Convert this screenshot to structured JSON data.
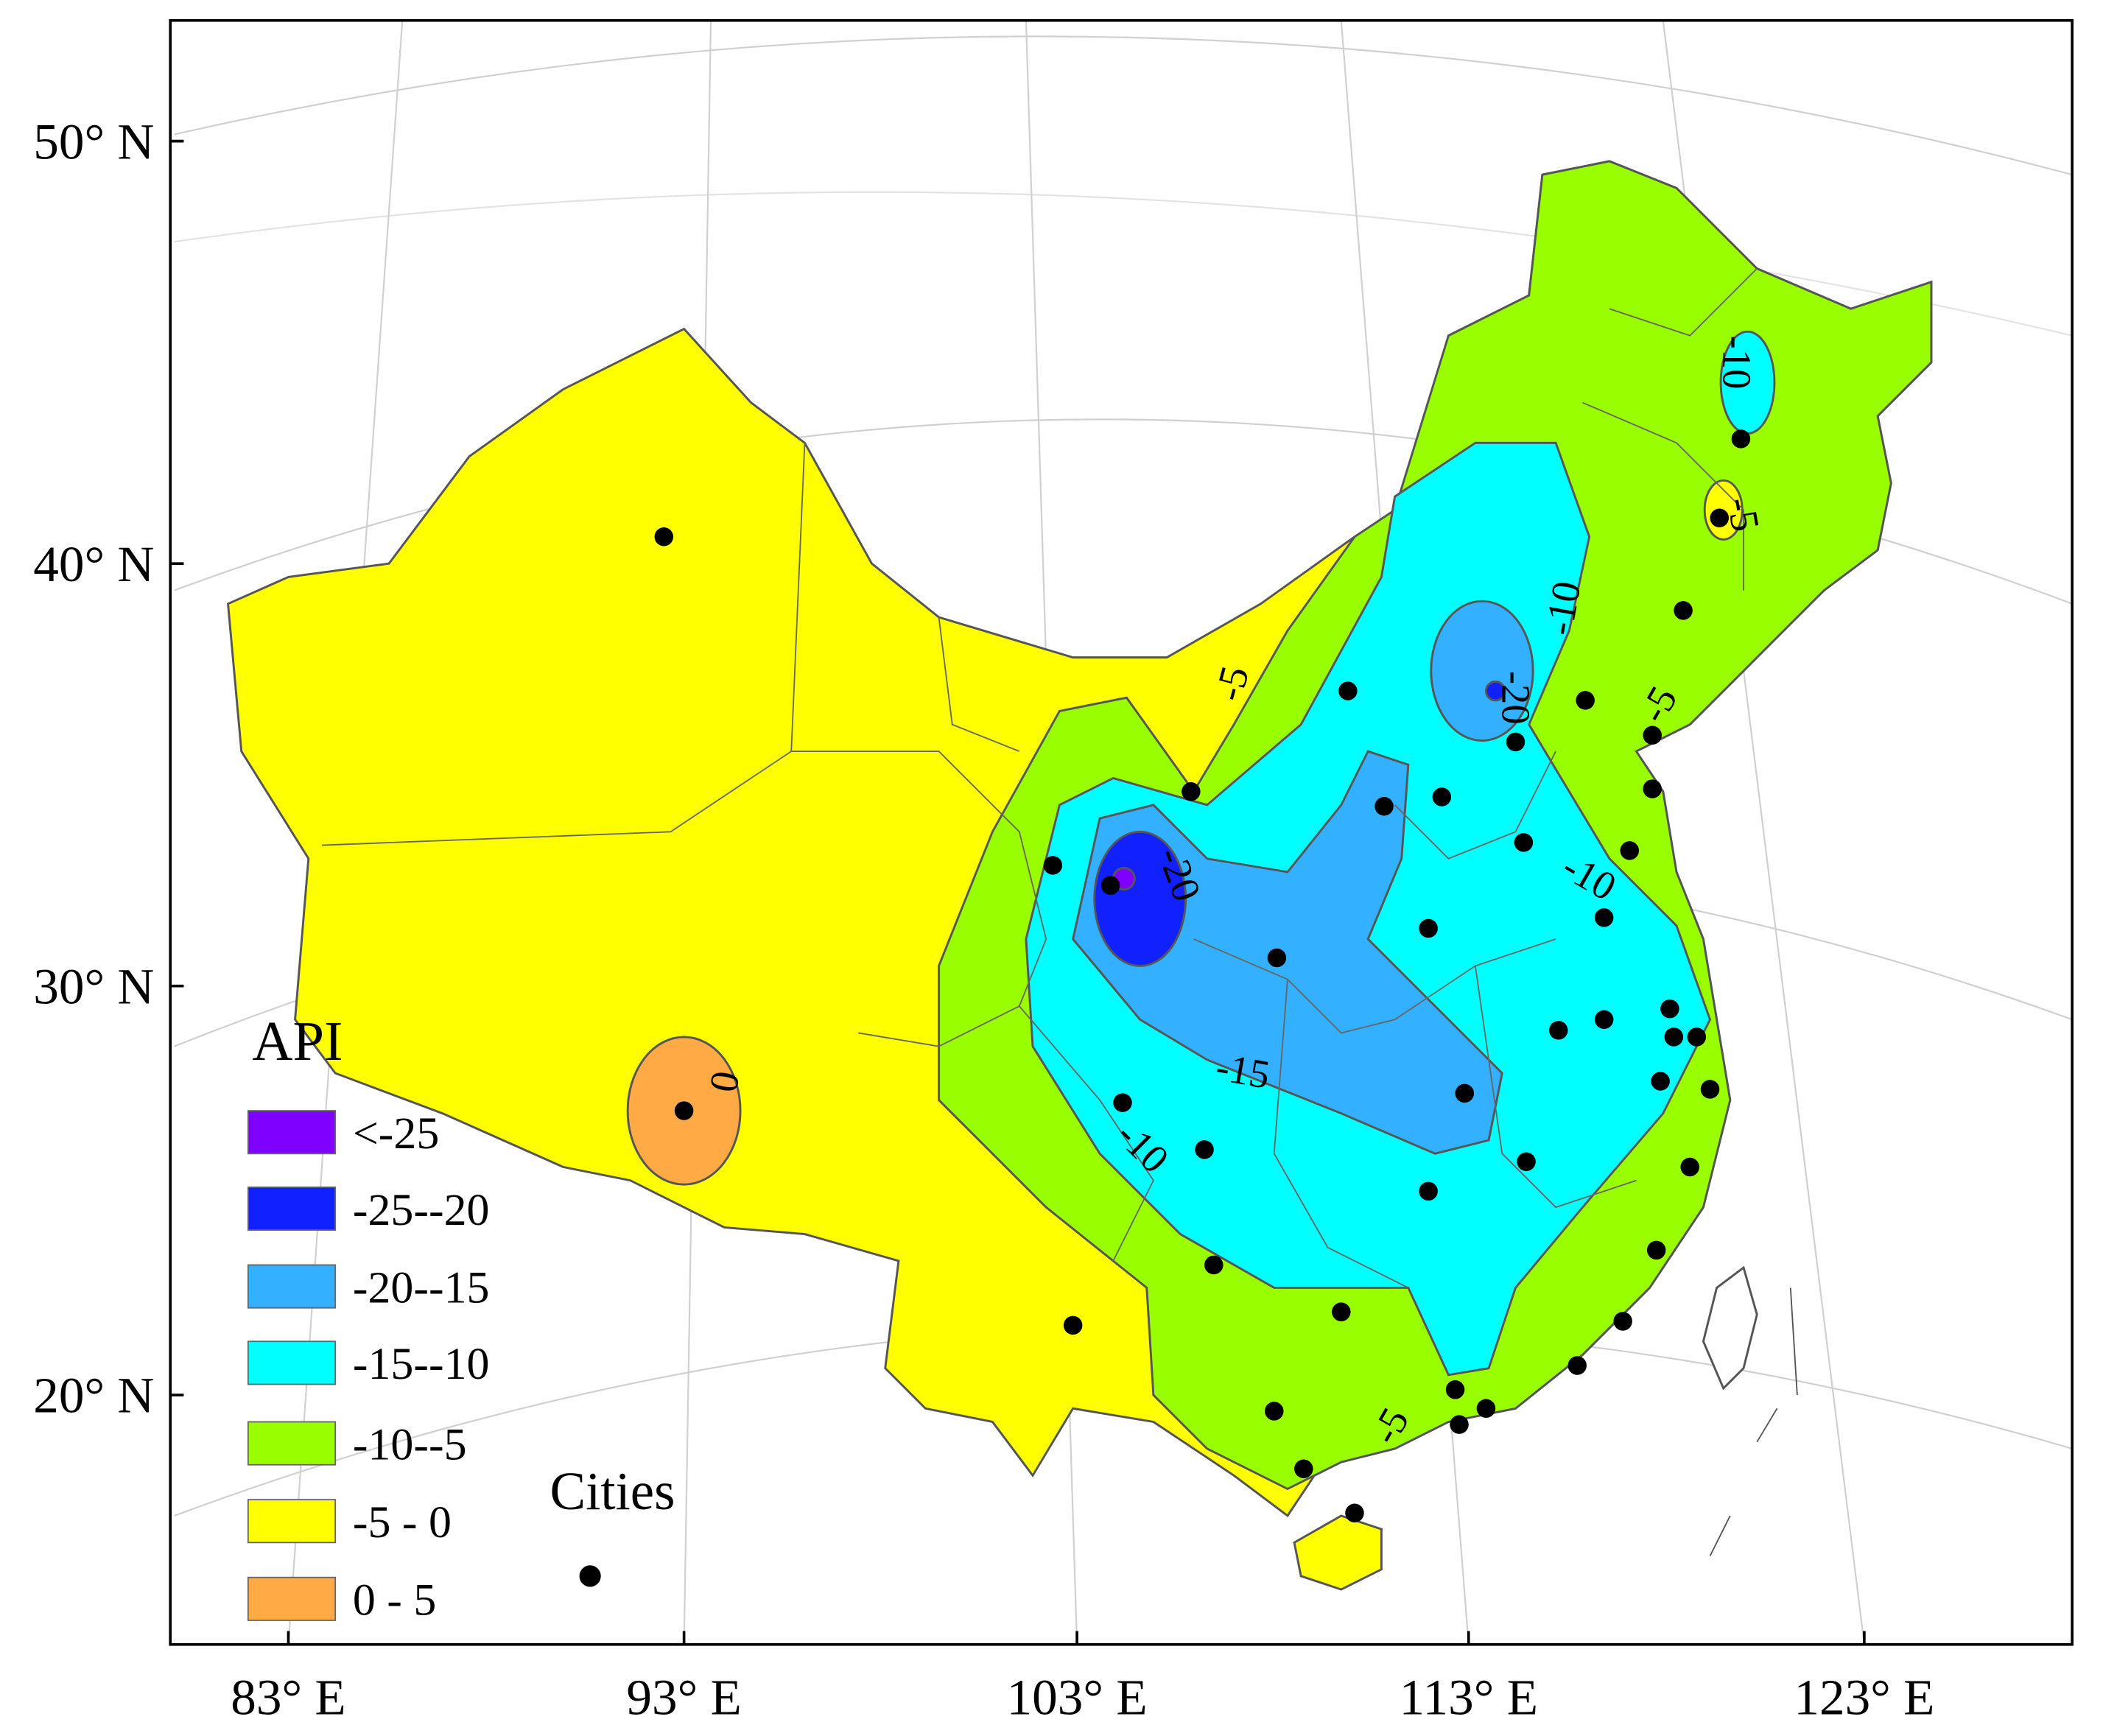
{
  "axes": {
    "latitude_labels": [
      "50° N",
      "40° N",
      "30° N",
      "20° N"
    ],
    "longitude_labels": [
      "83° E",
      "93° E",
      "103° E",
      "113° E",
      "123° E"
    ]
  },
  "legend": {
    "title": "API",
    "items": [
      "<-25",
      "-25--20",
      "-20--15",
      "-15--10",
      "-10--5",
      "-5 - 0",
      "0 - 5"
    ]
  },
  "cities_label": "Cities",
  "contour_labels": [
    "0",
    "-5",
    "-10",
    "-10",
    "-20",
    "-20",
    "-15",
    "-10",
    "-10",
    "-5",
    "-5",
    "-5"
  ]
}
